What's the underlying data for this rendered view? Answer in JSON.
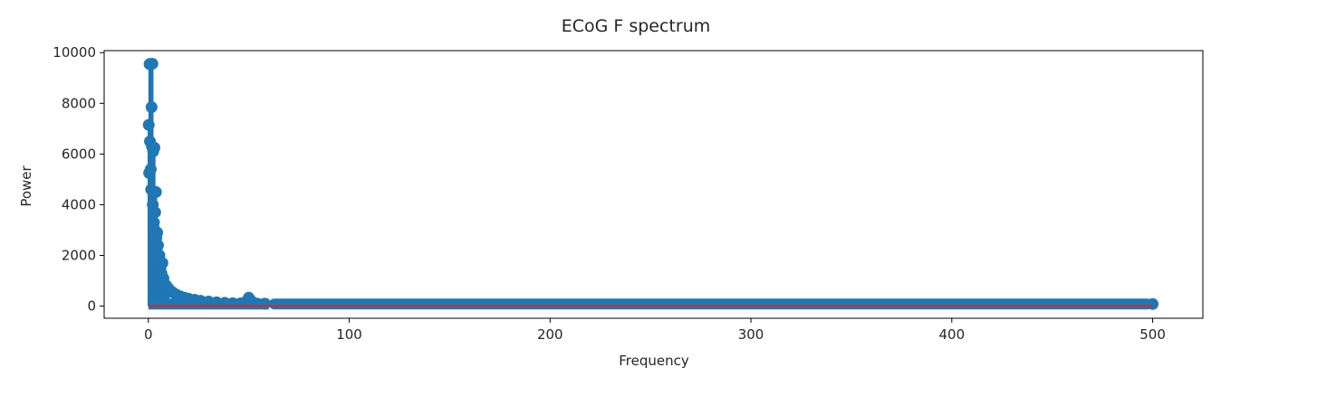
{
  "chart_data": {
    "type": "scatter",
    "style": "stem",
    "title": "ECoG F spectrum",
    "xlabel": "Frequency",
    "ylabel": "Power",
    "xlim": [
      -22,
      525
    ],
    "ylim": [
      -480,
      10080
    ],
    "xticks": [
      0,
      100,
      200,
      300,
      400,
      500
    ],
    "yticks": [
      0,
      2000,
      4000,
      6000,
      8000,
      10000
    ],
    "grid": false,
    "legend": "none",
    "colors": {
      "marker": "#1f77b4",
      "baseline": "#d62728",
      "axes": "#000000"
    },
    "series": [
      {
        "points": [
          [
            0.2,
            7150
          ],
          [
            0.4,
            5250
          ],
          [
            0.6,
            9550
          ],
          [
            0.8,
            6500
          ],
          [
            1.0,
            9560
          ],
          [
            1.2,
            5400
          ],
          [
            1.4,
            4600
          ],
          [
            1.6,
            7850
          ],
          [
            1.8,
            6300
          ],
          [
            2.0,
            9560
          ],
          [
            2.2,
            4000
          ],
          [
            2.4,
            6100
          ],
          [
            2.6,
            4500
          ],
          [
            2.8,
            3300
          ],
          [
            3.0,
            6250
          ],
          [
            3.2,
            3000
          ],
          [
            3.4,
            3700
          ],
          [
            3.6,
            2500
          ],
          [
            3.8,
            4500
          ],
          [
            4.0,
            2700
          ],
          [
            4.2,
            2200
          ],
          [
            4.4,
            2900
          ],
          [
            4.6,
            1900
          ],
          [
            4.8,
            2400
          ],
          [
            5.0,
            1700
          ],
          [
            5.5,
            2000
          ],
          [
            6.0,
            1500
          ],
          [
            6.5,
            1300
          ],
          [
            7.0,
            1700
          ],
          [
            7.5,
            1100
          ],
          [
            8.0,
            900
          ],
          [
            9.0,
            800
          ],
          [
            10.0,
            700
          ],
          [
            12.0,
            550
          ],
          [
            14.0,
            450
          ],
          [
            16.0,
            380
          ],
          [
            18.0,
            330
          ],
          [
            20.0,
            290
          ],
          [
            23.0,
            250
          ],
          [
            26.0,
            210
          ],
          [
            30.0,
            180
          ],
          [
            34.0,
            150
          ],
          [
            38.0,
            130
          ],
          [
            42.0,
            115
          ],
          [
            46.0,
            110
          ],
          [
            49.0,
            200
          ],
          [
            50.0,
            330
          ],
          [
            51.0,
            220
          ],
          [
            54.0,
            100
          ],
          [
            58.0,
            95
          ]
        ],
        "floor_from": 60,
        "floor_to": 500,
        "floor_value": 80
      }
    ]
  }
}
